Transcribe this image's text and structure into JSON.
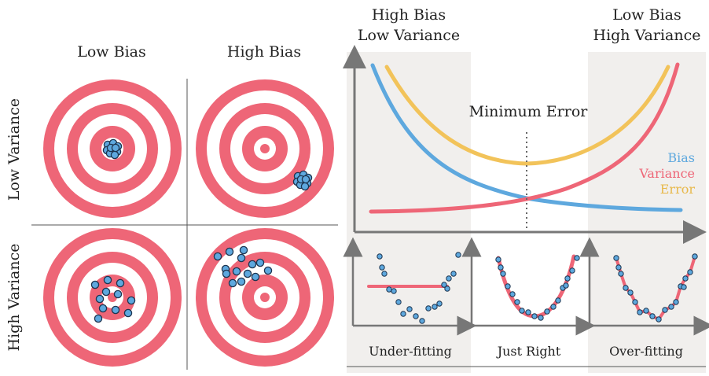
{
  "colors": {
    "target_red": "#ee6677",
    "dot_blue": "#5ea8de",
    "bias_curve": "#5ea8de",
    "variance_curve": "#ee6677",
    "error_curve": "#f2c35a",
    "shade": "#f1efed",
    "axis": "#777777"
  },
  "targets": {
    "col_labels": [
      "Low Bias",
      "High Bias"
    ],
    "row_labels": [
      "Low Variance",
      "High Variance"
    ]
  },
  "tradeoff": {
    "left_header": [
      "High Bias",
      "Low Variance"
    ],
    "right_header": [
      "Low Bias",
      "High Variance"
    ],
    "minimum_label": "Minimum Error",
    "legend": [
      {
        "label": "Bias",
        "color": "#5ea8de"
      },
      {
        "label": "Variance",
        "color": "#ee6677"
      },
      {
        "label": "Error",
        "color": "#f2c35a"
      }
    ]
  },
  "fits": {
    "labels": [
      "Under-fitting",
      "Just Right",
      "Over-fitting"
    ]
  }
}
